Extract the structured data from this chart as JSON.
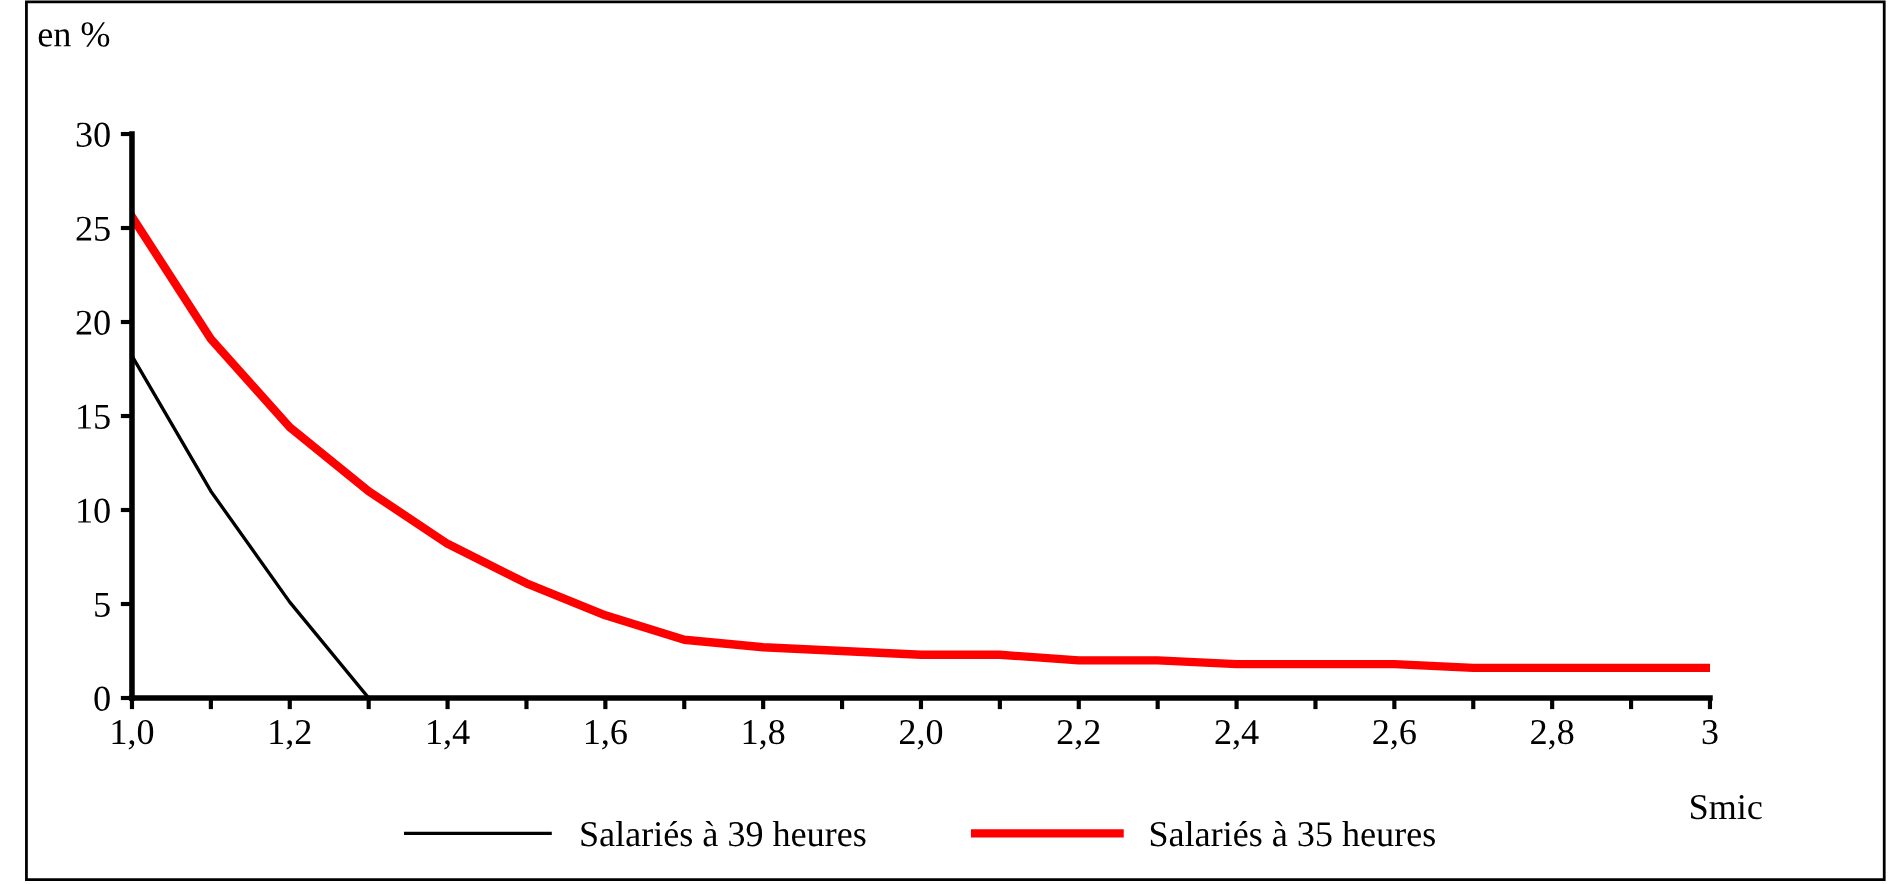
{
  "chart_data": {
    "type": "line",
    "ylabel": "en %",
    "xlabel": "Smic",
    "x": [
      1.0,
      1.1,
      1.2,
      1.3,
      1.4,
      1.5,
      1.6,
      1.7,
      1.8,
      1.9,
      2.0,
      2.1,
      2.2,
      2.3,
      2.4,
      2.5,
      2.6,
      2.7,
      2.8,
      2.9,
      3.0
    ],
    "series": [
      {
        "name": "Salariés à 39 heures",
        "color": "#000000",
        "x": [
          1.0,
          1.1,
          1.2,
          1.3
        ],
        "values": [
          18.2,
          11.0,
          5.1,
          0
        ]
      },
      {
        "name": "Salariés à 35 heures",
        "color": "#ff0000",
        "values": [
          25.6,
          19.1,
          14.4,
          11.0,
          8.2,
          6.1,
          4.4,
          3.1,
          2.7,
          2.5,
          2.3,
          2.3,
          2.0,
          2.0,
          1.8,
          1.8,
          1.8,
          1.6,
          1.6,
          1.6,
          1.6
        ]
      }
    ],
    "xlim": [
      1.0,
      3.0
    ],
    "ylim": [
      0,
      30
    ],
    "xticks": [
      {
        "value": 1.0,
        "label": "1,0"
      },
      {
        "value": 1.1,
        "label": null
      },
      {
        "value": 1.2,
        "label": "1,2"
      },
      {
        "value": 1.3,
        "label": null
      },
      {
        "value": 1.4,
        "label": "1,4"
      },
      {
        "value": 1.5,
        "label": null
      },
      {
        "value": 1.6,
        "label": "1,6"
      },
      {
        "value": 1.7,
        "label": null
      },
      {
        "value": 1.8,
        "label": "1,8"
      },
      {
        "value": 1.9,
        "label": null
      },
      {
        "value": 2.0,
        "label": "2,0"
      },
      {
        "value": 2.1,
        "label": null
      },
      {
        "value": 2.2,
        "label": "2,2"
      },
      {
        "value": 2.3,
        "label": null
      },
      {
        "value": 2.4,
        "label": "2,4"
      },
      {
        "value": 2.5,
        "label": null
      },
      {
        "value": 2.6,
        "label": "2,6"
      },
      {
        "value": 2.7,
        "label": null
      },
      {
        "value": 2.8,
        "label": "2,8"
      },
      {
        "value": 2.9,
        "label": null
      },
      {
        "value": 3.0,
        "label": "3"
      }
    ],
    "yticks": [
      0,
      5,
      10,
      15,
      20,
      25,
      30
    ],
    "grid": false,
    "legend": "bottom",
    "marker": "none",
    "line_style": "solid"
  }
}
